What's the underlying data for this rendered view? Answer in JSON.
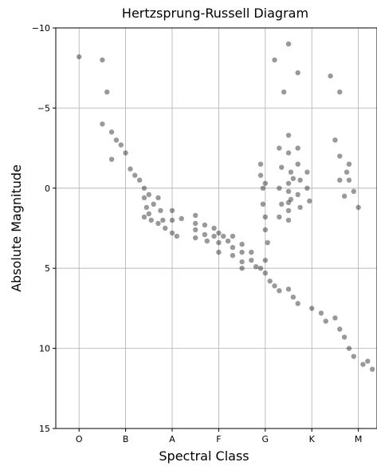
{
  "chart_data": {
    "type": "scatter",
    "title": "Hertzsprung-Russell Diagram",
    "xlabel": "Spectral Class",
    "ylabel": "Absolute Magnitude",
    "x_ticks": [
      "O",
      "B",
      "A",
      "F",
      "G",
      "K",
      "M"
    ],
    "y_ticks": [
      "−10",
      "−5",
      "0",
      "5",
      "10",
      "15"
    ],
    "xlim": [
      -0.5,
      6.4
    ],
    "ylim": [
      15,
      -10
    ],
    "y_inverted": true,
    "grid": true,
    "point_color": "#000000",
    "point_alpha": 0.04,
    "point_density_note_unused": "",
    "series": [
      {
        "values": [
          {
            "x": 0.0,
            "y": -8.2
          },
          {
            "x": 0.5,
            "y": -8.0
          },
          {
            "x": 0.6,
            "y": -6.0
          },
          {
            "x": 0.5,
            "y": -4.0
          },
          {
            "x": 0.7,
            "y": -3.5
          },
          {
            "x": 0.8,
            "y": -3.0
          },
          {
            "x": 0.9,
            "y": -2.7
          },
          {
            "x": 0.7,
            "y": -1.8
          },
          {
            "x": 1.0,
            "y": -2.2
          },
          {
            "x": 1.1,
            "y": -1.2
          },
          {
            "x": 1.2,
            "y": -0.8
          },
          {
            "x": 1.3,
            "y": -0.5
          },
          {
            "x": 1.4,
            "y": 0.0
          },
          {
            "x": 1.4,
            "y": 0.6
          },
          {
            "x": 1.45,
            "y": 1.2
          },
          {
            "x": 1.5,
            "y": 1.6
          },
          {
            "x": 1.55,
            "y": 2.0
          },
          {
            "x": 1.4,
            "y": 1.8
          },
          {
            "x": 1.5,
            "y": 0.4
          },
          {
            "x": 1.6,
            "y": 1.0
          },
          {
            "x": 1.7,
            "y": 0.6
          },
          {
            "x": 1.75,
            "y": 1.4
          },
          {
            "x": 1.8,
            "y": 2.0
          },
          {
            "x": 1.85,
            "y": 2.5
          },
          {
            "x": 1.7,
            "y": 2.2
          },
          {
            "x": 2.0,
            "y": 1.4
          },
          {
            "x": 2.0,
            "y": 2.0
          },
          {
            "x": 2.0,
            "y": 2.8
          },
          {
            "x": 2.1,
            "y": 3.0
          },
          {
            "x": 2.2,
            "y": 1.9
          },
          {
            "x": 2.5,
            "y": 2.2
          },
          {
            "x": 2.5,
            "y": 2.6
          },
          {
            "x": 2.5,
            "y": 3.1
          },
          {
            "x": 2.5,
            "y": 1.7
          },
          {
            "x": 2.7,
            "y": 2.3
          },
          {
            "x": 2.7,
            "y": 2.9
          },
          {
            "x": 2.75,
            "y": 3.3
          },
          {
            "x": 2.9,
            "y": 2.5
          },
          {
            "x": 2.9,
            "y": 3.0
          },
          {
            "x": 3.0,
            "y": 3.4
          },
          {
            "x": 3.0,
            "y": 2.8
          },
          {
            "x": 3.0,
            "y": 4.0
          },
          {
            "x": 3.1,
            "y": 3.0
          },
          {
            "x": 3.2,
            "y": 3.3
          },
          {
            "x": 3.3,
            "y": 3.7
          },
          {
            "x": 3.3,
            "y": 4.2
          },
          {
            "x": 3.3,
            "y": 3.0
          },
          {
            "x": 3.5,
            "y": 3.5
          },
          {
            "x": 3.5,
            "y": 4.0
          },
          {
            "x": 3.5,
            "y": 4.6
          },
          {
            "x": 3.5,
            "y": 5.0
          },
          {
            "x": 3.7,
            "y": 4.0
          },
          {
            "x": 3.7,
            "y": 4.5
          },
          {
            "x": 3.8,
            "y": 4.9
          },
          {
            "x": 3.9,
            "y": 5.0
          },
          {
            "x": 4.0,
            "y": 4.5
          },
          {
            "x": 4.0,
            "y": 5.3
          },
          {
            "x": 4.1,
            "y": 5.8
          },
          {
            "x": 4.2,
            "y": 6.1
          },
          {
            "x": 4.3,
            "y": 6.4
          },
          {
            "x": 4.5,
            "y": 6.3
          },
          {
            "x": 4.6,
            "y": 6.8
          },
          {
            "x": 4.7,
            "y": 7.2
          },
          {
            "x": 5.0,
            "y": 7.5
          },
          {
            "x": 5.2,
            "y": 7.8
          },
          {
            "x": 5.3,
            "y": 8.3
          },
          {
            "x": 5.5,
            "y": 8.1
          },
          {
            "x": 5.6,
            "y": 8.8
          },
          {
            "x": 5.7,
            "y": 9.3
          },
          {
            "x": 5.8,
            "y": 10.0
          },
          {
            "x": 5.9,
            "y": 10.5
          },
          {
            "x": 6.1,
            "y": 11.0
          },
          {
            "x": 6.2,
            "y": 10.8
          },
          {
            "x": 6.3,
            "y": 11.3
          },
          {
            "x": 3.9,
            "y": -1.5
          },
          {
            "x": 3.9,
            "y": -0.8
          },
          {
            "x": 3.95,
            "y": 0.0
          },
          {
            "x": 3.95,
            "y": 1.0
          },
          {
            "x": 4.0,
            "y": 1.8
          },
          {
            "x": 4.0,
            "y": 2.6
          },
          {
            "x": 4.05,
            "y": 3.4
          },
          {
            "x": 4.0,
            "y": -0.3
          },
          {
            "x": 4.3,
            "y": -2.5
          },
          {
            "x": 4.35,
            "y": -1.3
          },
          {
            "x": 4.3,
            "y": 0.0
          },
          {
            "x": 4.35,
            "y": 1.0
          },
          {
            "x": 4.3,
            "y": 1.8
          },
          {
            "x": 4.5,
            "y": -3.3
          },
          {
            "x": 4.5,
            "y": -2.2
          },
          {
            "x": 4.55,
            "y": -1.0
          },
          {
            "x": 4.5,
            "y": -0.3
          },
          {
            "x": 4.5,
            "y": 0.2
          },
          {
            "x": 4.55,
            "y": 0.7
          },
          {
            "x": 4.5,
            "y": 1.4
          },
          {
            "x": 4.5,
            "y": 2.0
          },
          {
            "x": 4.5,
            "y": 0.9
          },
          {
            "x": 4.6,
            "y": -0.6
          },
          {
            "x": 4.7,
            "y": -2.5
          },
          {
            "x": 4.7,
            "y": -1.5
          },
          {
            "x": 4.75,
            "y": -0.5
          },
          {
            "x": 4.7,
            "y": 0.4
          },
          {
            "x": 4.75,
            "y": 1.2
          },
          {
            "x": 4.9,
            "y": -1.0
          },
          {
            "x": 4.9,
            "y": 0.0
          },
          {
            "x": 4.95,
            "y": 0.8
          },
          {
            "x": 5.5,
            "y": -3.0
          },
          {
            "x": 5.6,
            "y": -2.0
          },
          {
            "x": 5.6,
            "y": -0.5
          },
          {
            "x": 5.7,
            "y": 0.5
          },
          {
            "x": 5.75,
            "y": -1.0
          },
          {
            "x": 5.8,
            "y": -1.5
          },
          {
            "x": 5.8,
            "y": -0.5
          },
          {
            "x": 5.9,
            "y": 0.2
          },
          {
            "x": 6.0,
            "y": 1.2
          },
          {
            "x": 4.2,
            "y": -8.0
          },
          {
            "x": 4.5,
            "y": -9.0
          },
          {
            "x": 4.7,
            "y": -7.2
          },
          {
            "x": 4.4,
            "y": -6.0
          },
          {
            "x": 5.4,
            "y": -7.0
          },
          {
            "x": 5.6,
            "y": -6.0
          }
        ]
      }
    ]
  }
}
